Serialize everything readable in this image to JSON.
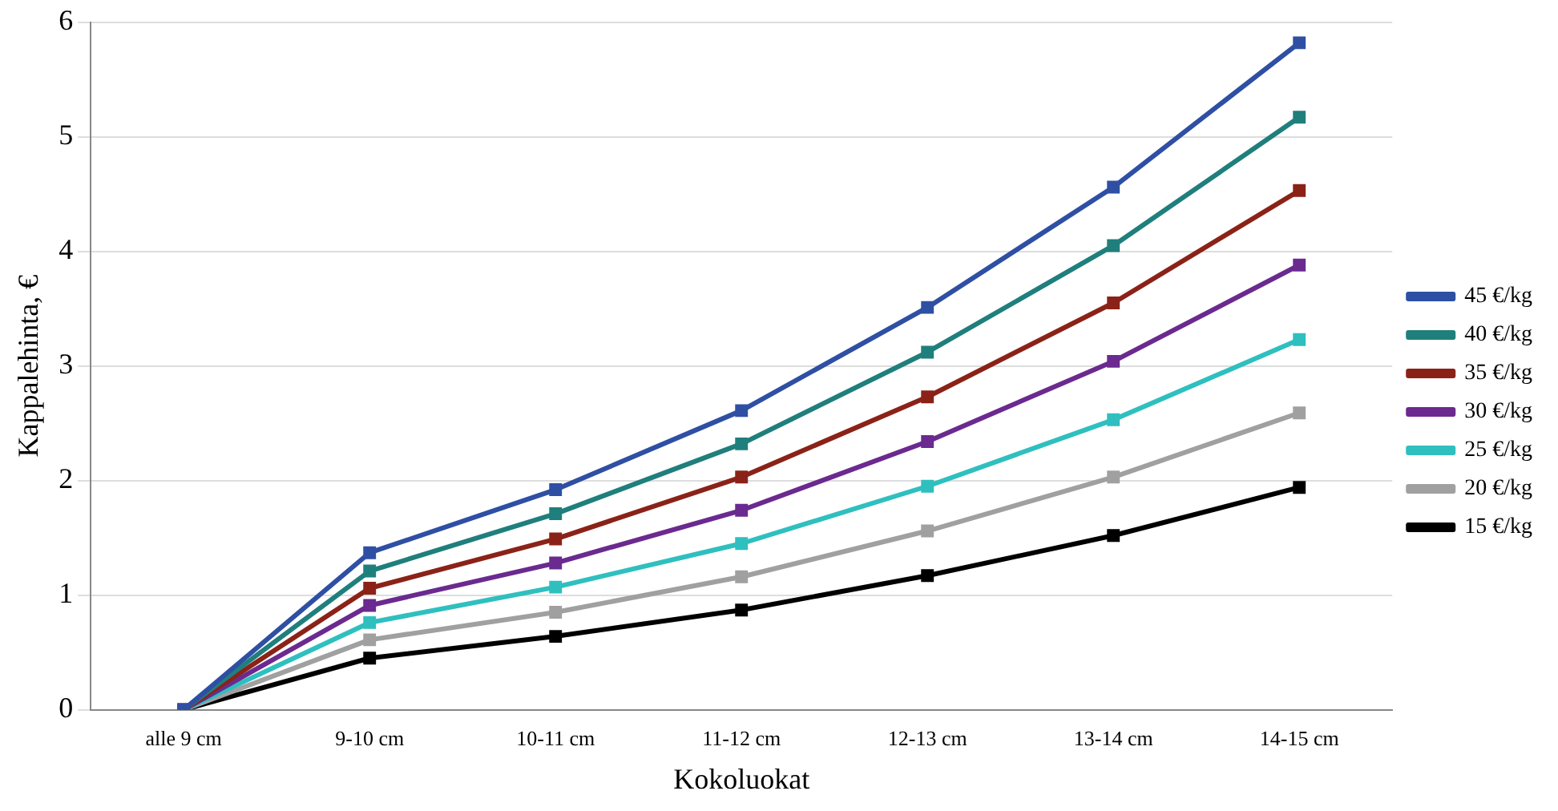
{
  "chart_data": {
    "type": "line",
    "xlabel": "Kokoluokat",
    "ylabel": "Kappalehinta, €",
    "categories": [
      "alle 9 cm",
      "9-10 cm",
      "10-11 cm",
      "11-12 cm",
      "12-13 cm",
      "13-14 cm",
      "14-15 cm"
    ],
    "series": [
      {
        "name": "45 €/kg",
        "color": "#2e4fa3",
        "values": [
          0,
          1.37,
          1.92,
          2.61,
          3.51,
          4.56,
          5.82
        ]
      },
      {
        "name": "40 €/kg",
        "color": "#1f7f7c",
        "values": [
          0,
          1.21,
          1.71,
          2.32,
          3.12,
          4.05,
          5.17
        ]
      },
      {
        "name": "35 €/kg",
        "color": "#8b2218",
        "values": [
          0,
          1.06,
          1.49,
          2.03,
          2.73,
          3.55,
          4.53
        ]
      },
      {
        "name": "30 €/kg",
        "color": "#6b2a8f",
        "values": [
          0,
          0.91,
          1.28,
          1.74,
          2.34,
          3.04,
          3.88
        ]
      },
      {
        "name": "25 €/kg",
        "color": "#2fbfbf",
        "values": [
          0,
          0.76,
          1.07,
          1.45,
          1.95,
          2.53,
          3.23
        ]
      },
      {
        "name": "20 €/kg",
        "color": "#a0a0a0",
        "values": [
          0,
          0.61,
          0.85,
          1.16,
          1.56,
          2.03,
          2.59
        ]
      },
      {
        "name": "15 €/kg",
        "color": "#000000",
        "values": [
          0,
          0.45,
          0.64,
          0.87,
          1.17,
          1.52,
          1.94
        ]
      }
    ],
    "ylim": [
      0,
      6
    ],
    "yticks": [
      0,
      1,
      2,
      3,
      4,
      5,
      6
    ],
    "grid": "y",
    "legend": "right",
    "marker": "square",
    "line_style": "solid"
  }
}
